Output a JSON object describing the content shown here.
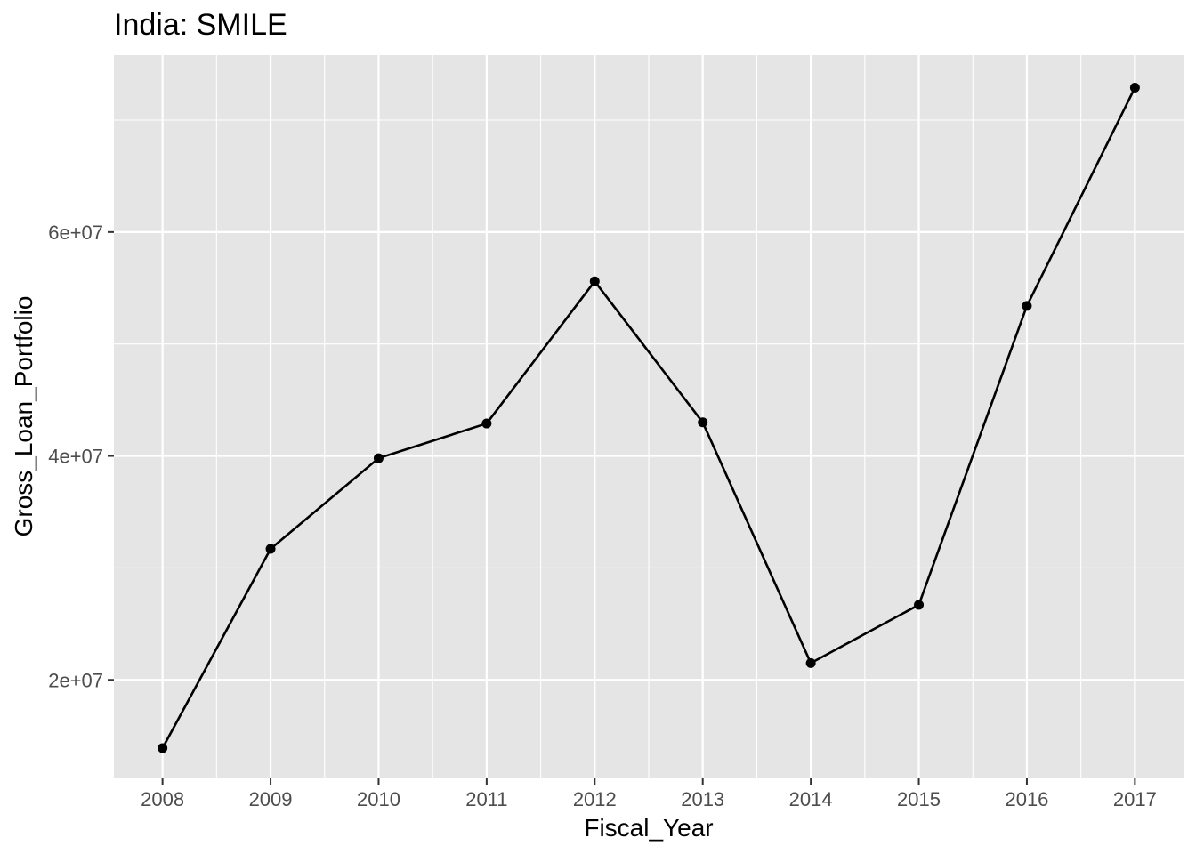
{
  "chart_data": {
    "type": "line",
    "title": "India:  SMILE",
    "xlabel": "Fiscal_Year",
    "ylabel": "Gross_Loan_Portfolio",
    "x": [
      2008,
      2009,
      2010,
      2011,
      2012,
      2013,
      2014,
      2015,
      2016,
      2017
    ],
    "y_tick_values": [
      20000000,
      40000000,
      60000000
    ],
    "y_tick_labels": [
      "2e+07",
      "4e+07",
      "6e+07"
    ],
    "xlim": [
      2007.55,
      2017.45
    ],
    "ylim": [
      11200000,
      75800000
    ],
    "series": [
      {
        "values": [
          13900000,
          31700000,
          39800000,
          42900000,
          55600000,
          43000000,
          21500000,
          26700000,
          53400000,
          72900000
        ]
      }
    ],
    "grid": true,
    "colors": {
      "panel_background": "#e5e5e5",
      "grid_line": "#ffffff",
      "line": "#000000",
      "point": "#000000",
      "text": "#000000",
      "tick_text": "#4d4d4d",
      "tick_mark": "#333333"
    }
  }
}
